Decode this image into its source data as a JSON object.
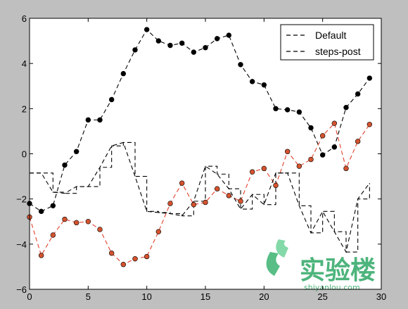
{
  "chart_data": {
    "type": "line",
    "title": "",
    "xlabel": "",
    "ylabel": "",
    "xlim": [
      0,
      30
    ],
    "ylim": [
      -6,
      6
    ],
    "xticks": [
      0,
      5,
      10,
      15,
      20,
      25,
      30
    ],
    "yticks": [
      -6,
      -4,
      -2,
      0,
      2,
      4,
      6
    ],
    "grid": false,
    "legend_position": "top-right",
    "legend": [
      "Default",
      "steps-post"
    ],
    "series": [
      {
        "style": "black dashed line with dot markers",
        "color": "#000000",
        "marker_color": "#000000",
        "drawstyle": "default",
        "x": [
          0,
          1,
          2,
          3,
          4,
          5,
          6,
          7,
          8,
          9,
          10,
          11,
          12,
          13,
          14,
          15,
          16,
          17,
          18,
          19,
          20,
          21,
          22,
          23,
          24,
          25,
          26,
          27,
          28,
          29
        ],
        "y": [
          -2.2,
          -2.55,
          -2.3,
          -0.5,
          0.1,
          1.5,
          1.5,
          2.4,
          3.55,
          4.6,
          5.5,
          5.0,
          4.8,
          4.9,
          4.5,
          4.7,
          5.1,
          5.25,
          3.95,
          3.2,
          3.05,
          2.0,
          1.95,
          1.85,
          1.15,
          -0.05,
          0.3,
          2.05,
          2.65,
          3.35
        ]
      },
      {
        "style": "red dashed line with dot markers",
        "color": "#e0402a",
        "marker_color": "#d4532e",
        "drawstyle": "default",
        "x": [
          0,
          1,
          2,
          3,
          4,
          5,
          6,
          7,
          8,
          9,
          10,
          11,
          12,
          13,
          14,
          15,
          16,
          17,
          18,
          19,
          20,
          21,
          22,
          23,
          24,
          25,
          26,
          27,
          28,
          29
        ],
        "y": [
          -2.8,
          -4.5,
          -3.6,
          -2.9,
          -3.05,
          -3.0,
          -3.35,
          -4.4,
          -4.9,
          -4.65,
          -4.55,
          -3.45,
          -2.2,
          -1.3,
          -2.25,
          -2.15,
          -1.55,
          -1.85,
          -2.1,
          -0.8,
          -0.65,
          -1.4,
          0.1,
          -0.55,
          -0.25,
          0.8,
          1.35,
          -0.65,
          0.55,
          1.3
        ]
      },
      {
        "name": "Default",
        "style": "black dashed line",
        "color": "#000000",
        "drawstyle": "default",
        "x": [
          0,
          1,
          2,
          3,
          4,
          5,
          6,
          7,
          8,
          9,
          10,
          11,
          12,
          13,
          14,
          15,
          16,
          17,
          18,
          19,
          20,
          21,
          22,
          23,
          24,
          25,
          26,
          27,
          28,
          29
        ],
        "y": [
          -0.85,
          -0.85,
          -1.7,
          -1.75,
          -1.45,
          -1.45,
          -0.6,
          0.35,
          0.5,
          -1.0,
          -2.55,
          -2.6,
          -2.65,
          -2.75,
          -2.1,
          -0.55,
          -0.9,
          -1.55,
          -2.45,
          -1.8,
          -2.25,
          -0.85,
          -0.85,
          -2.3,
          -3.5,
          -2.55,
          -3.45,
          -4.35,
          -2.0,
          -1.3
        ]
      },
      {
        "name": "steps-post",
        "style": "black dashed line",
        "color": "#000000",
        "drawstyle": "steps-post",
        "x": [
          0,
          1,
          2,
          3,
          4,
          5,
          6,
          7,
          8,
          9,
          10,
          11,
          12,
          13,
          14,
          15,
          16,
          17,
          18,
          19,
          20,
          21,
          22,
          23,
          24,
          25,
          26,
          27,
          28,
          29
        ],
        "y": [
          -0.85,
          -0.85,
          -1.7,
          -1.75,
          -1.45,
          -1.45,
          -0.6,
          0.35,
          0.5,
          -1.0,
          -2.55,
          -2.6,
          -2.65,
          -2.75,
          -2.1,
          -0.55,
          -0.9,
          -1.55,
          -2.45,
          -1.8,
          -2.25,
          -0.85,
          -0.85,
          -2.3,
          -3.5,
          -2.55,
          -3.45,
          -4.35,
          -2.0,
          -1.3
        ]
      }
    ]
  },
  "watermark": {
    "text": "实验楼",
    "subtext": "shiyanlou.com",
    "color": "#2fa866"
  }
}
